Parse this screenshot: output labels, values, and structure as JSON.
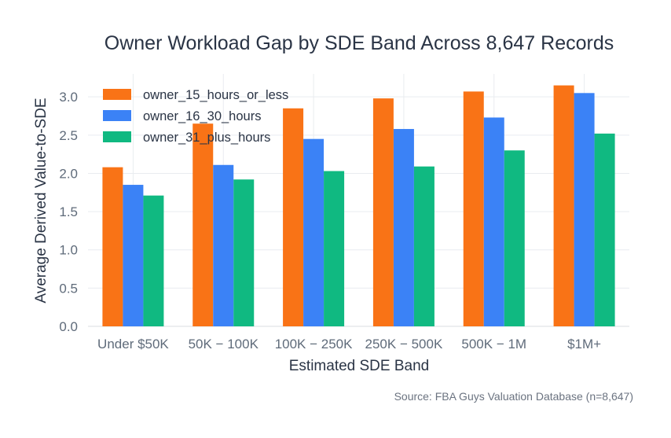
{
  "chart_data": {
    "type": "bar",
    "title": "Owner Workload Gap by SDE Band Across 8,647 Records",
    "xlabel": "Estimated SDE Band",
    "ylabel": "Average Derived Value-to-SDE",
    "categories": [
      "Under $50K",
      "$50K – $100K",
      "$100K – $250K",
      "$250K – $500K",
      "$500K – $1M",
      "$1M+"
    ],
    "categories_as_rendered": [
      "Under $50K",
      "50K − 100K",
      "100K − 250K",
      "250K − 500K",
      "500K − 1M",
      "$1M+"
    ],
    "ylim": [
      0,
      3.3
    ],
    "yticks": [
      0.0,
      0.5,
      1.0,
      1.5,
      2.0,
      2.5,
      3.0
    ],
    "ytick_labels": [
      "0.0",
      "0.5",
      "1.0",
      "1.5",
      "2.0",
      "2.5",
      "3.0"
    ],
    "grid": true,
    "legend_position": "top-left",
    "series": [
      {
        "name": "owner_15_hours_or_less",
        "color": "#f97316",
        "values": [
          2.08,
          2.65,
          2.85,
          2.98,
          3.07,
          3.15
        ]
      },
      {
        "name": "owner_16_30_hours",
        "color": "#3b82f6",
        "values": [
          1.85,
          2.11,
          2.45,
          2.58,
          2.73,
          3.05
        ]
      },
      {
        "name": "owner_31_plus_hours",
        "color": "#10b981",
        "values": [
          1.71,
          1.92,
          2.03,
          2.09,
          2.3,
          2.52
        ]
      }
    ],
    "source_note": "Source: FBA Guys Valuation Database (n=8,647)"
  }
}
